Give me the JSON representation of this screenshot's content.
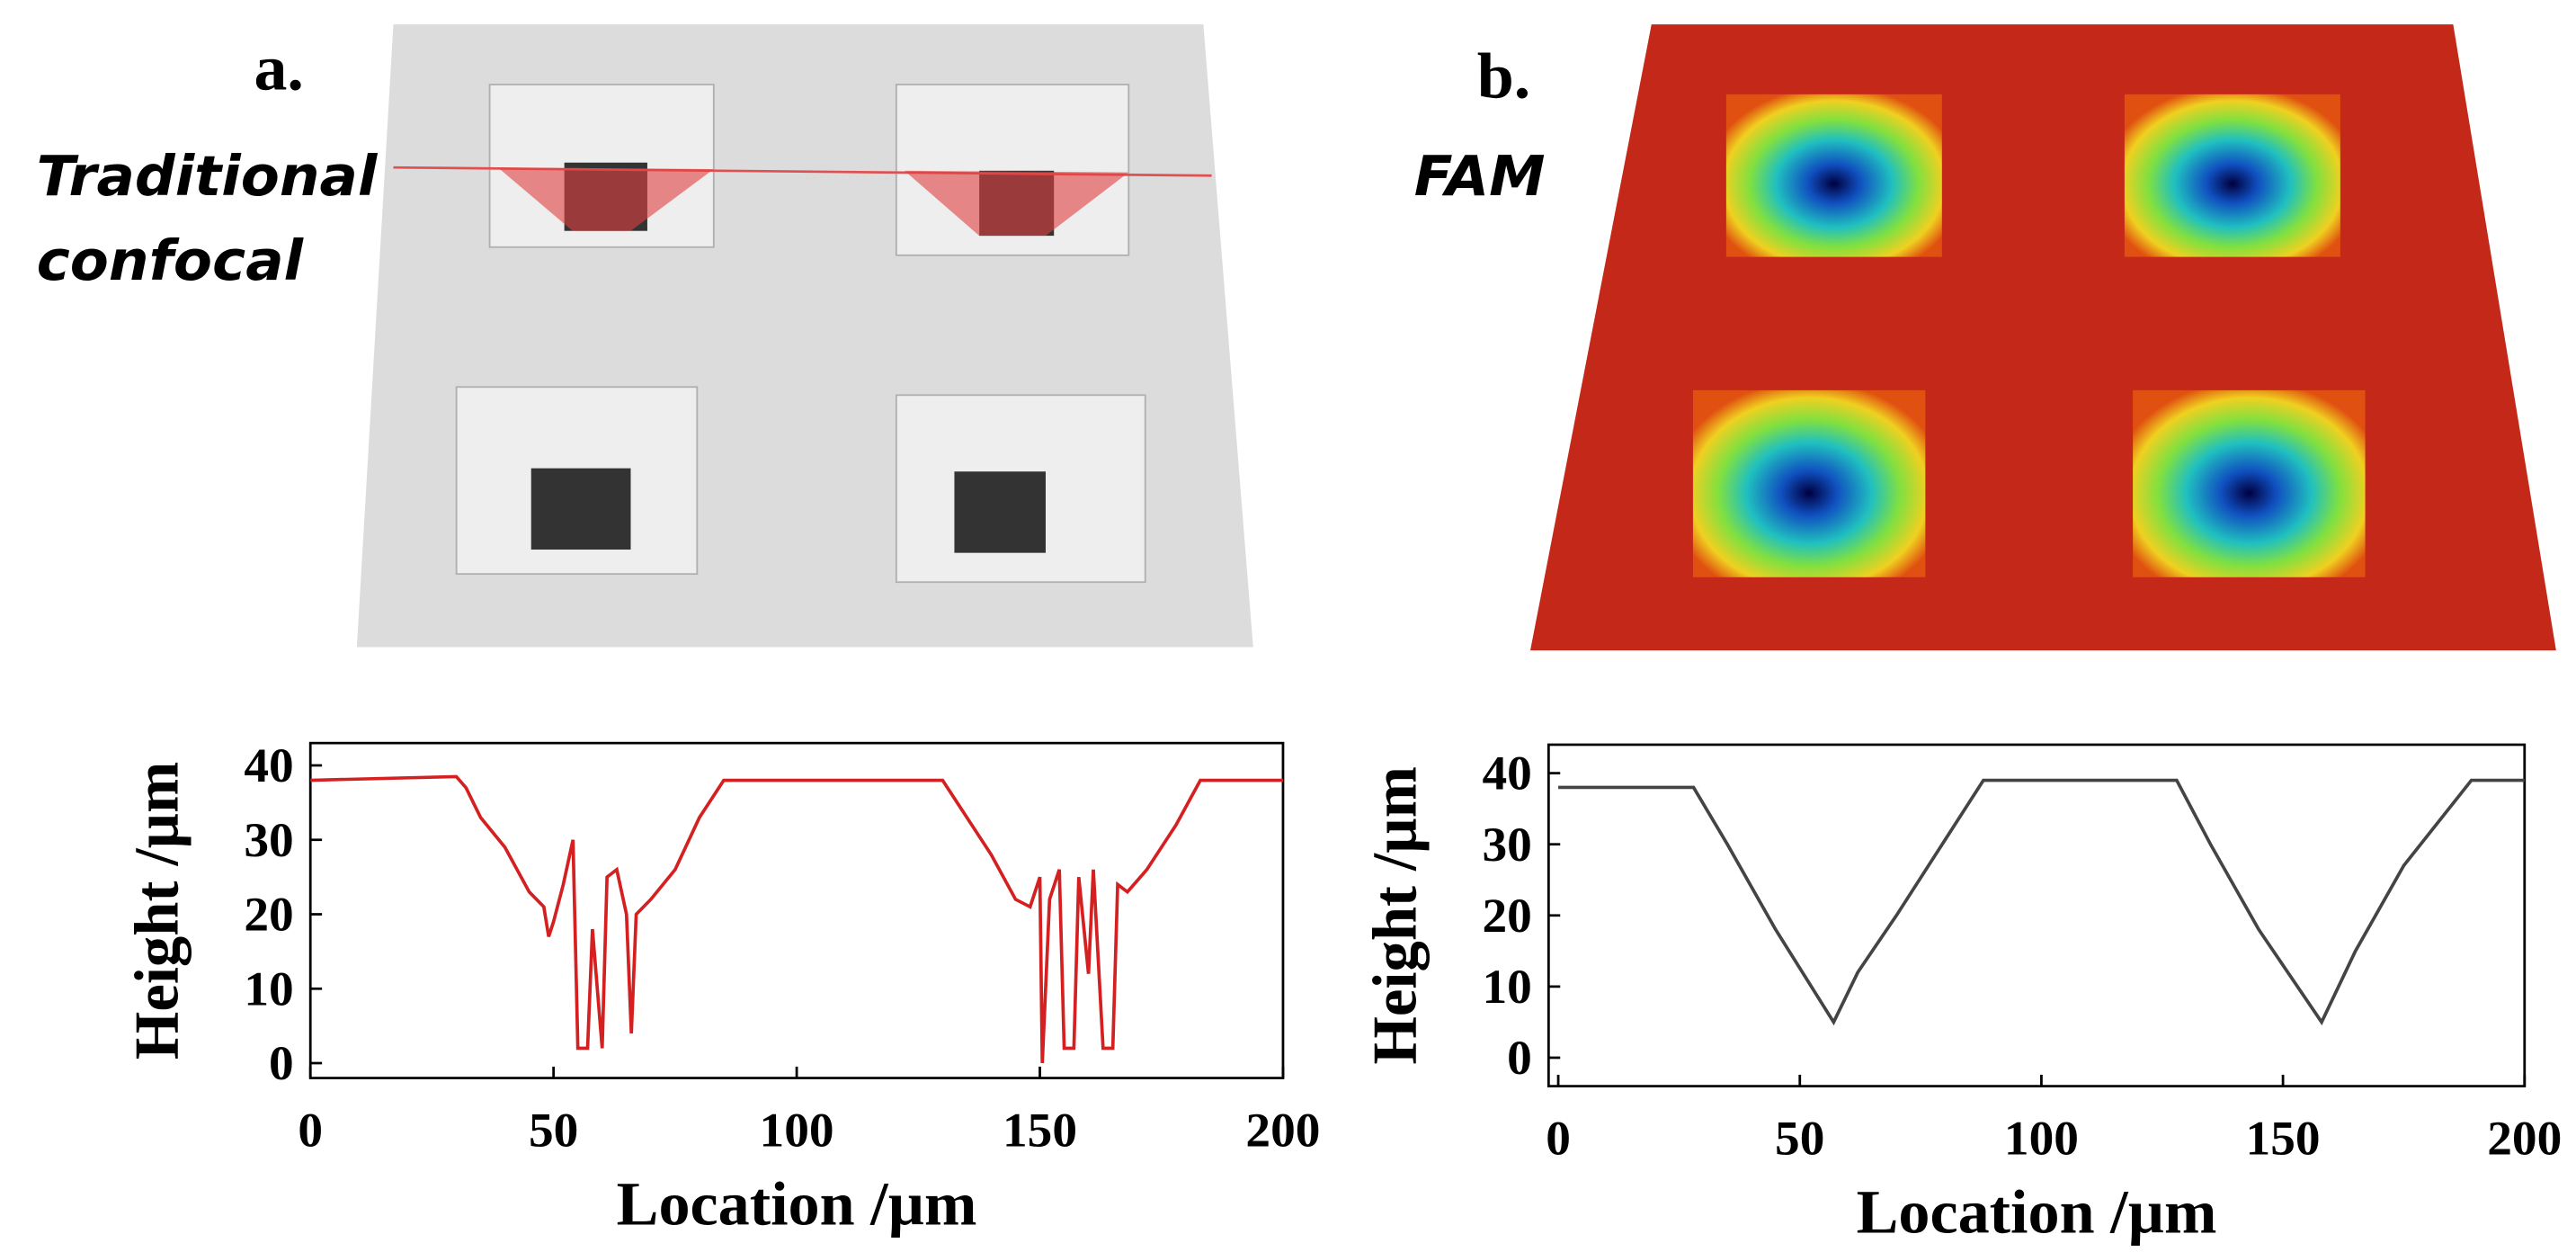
{
  "images": [
    {
      "label": "a.",
      "caption_lines": [
        "Traditional",
        "confocal"
      ]
    },
    {
      "label": "b.",
      "caption_lines": [
        "FAM"
      ]
    }
  ],
  "chart_data": [
    {
      "type": "line",
      "x_label": "Location /µm",
      "y_label": "Height /µm",
      "xlim": [
        0,
        200
      ],
      "ylim": [
        -2,
        43
      ],
      "xticks": [
        0,
        50,
        100,
        150,
        200
      ],
      "yticks": [
        0,
        10,
        20,
        30,
        40
      ],
      "x": [
        0,
        30,
        32,
        35,
        40,
        45,
        48,
        49,
        50,
        52,
        54,
        55,
        57,
        58,
        60,
        61,
        63,
        65,
        66,
        67,
        70,
        75,
        80,
        85,
        90,
        125,
        130,
        135,
        140,
        145,
        148,
        150,
        150.5,
        152,
        154,
        155,
        157,
        158,
        160,
        161,
        163,
        165,
        166,
        168,
        172,
        178,
        183,
        190,
        200
      ],
      "series": [
        {
          "color": "#d42020",
          "values": [
            38,
            38.5,
            37,
            33,
            29,
            23,
            21,
            17,
            19,
            24,
            30,
            2,
            2,
            18,
            2,
            25,
            26,
            20,
            4,
            20,
            22,
            26,
            33,
            38,
            38,
            38,
            38,
            33,
            28,
            22,
            21,
            25,
            0,
            22,
            26,
            2,
            2,
            25,
            12,
            26,
            2,
            2,
            24,
            23,
            26,
            32,
            38,
            38,
            38
          ]
        }
      ]
    },
    {
      "type": "line",
      "x_label": "Location /µm",
      "y_label": "Height /µm",
      "xlim": [
        -2,
        200
      ],
      "ylim": [
        -4,
        44
      ],
      "xticks": [
        0,
        50,
        100,
        150,
        200
      ],
      "yticks": [
        0,
        10,
        20,
        30,
        40
      ],
      "x": [
        0,
        28,
        35,
        45,
        57,
        62,
        70,
        88,
        128,
        135,
        145,
        158,
        165,
        175,
        189,
        200
      ],
      "series": [
        {
          "color": "#444444",
          "values": [
            38,
            38,
            30,
            18,
            5,
            12,
            20,
            39,
            39,
            30,
            18,
            5,
            15,
            27,
            39,
            39
          ]
        }
      ]
    }
  ]
}
